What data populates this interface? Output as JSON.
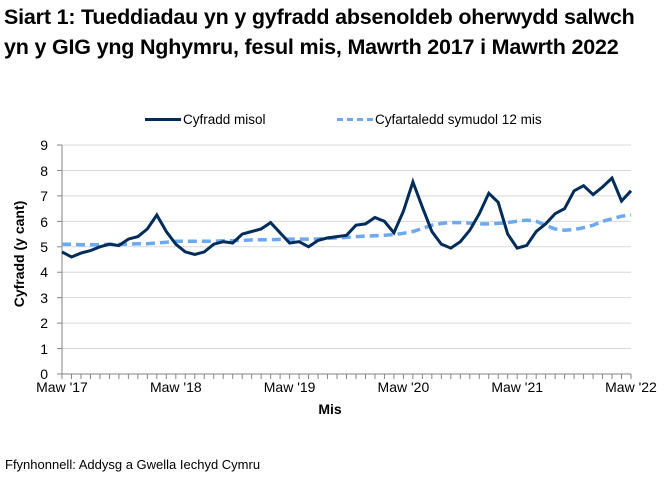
{
  "title": "Siart 1: Tueddiadau yn y gyfradd absenoldeb oherwydd salwch yn y GIG yng Nghymru, fesul mis, Mawrth 2017 i Mawrth 2022",
  "legend": {
    "series1": "Cyfradd misol",
    "series2": "Cyfartaledd symudol 12 mis"
  },
  "axes": {
    "ylabel": "Cyfradd (y cant)",
    "xlabel": "Mis",
    "yticks": [
      "0",
      "1",
      "2",
      "3",
      "4",
      "5",
      "6",
      "7",
      "8",
      "9"
    ],
    "xticks": [
      "Maw '17",
      "Maw '18",
      "Maw '19",
      "Maw '20",
      "Maw '21",
      "Maw '22"
    ]
  },
  "source": "Ffynhonnell: Addysg a Gwella Iechyd Cymru",
  "colors": {
    "monthly": "#002C5C",
    "rolling": "#6CA9F2",
    "grid": "#D9D9D9",
    "axis": "#868686"
  },
  "chart_data": {
    "type": "line",
    "title": "Siart 1: Tueddiadau yn y gyfradd absenoldeb oherwydd salwch yn y GIG yng Nghymru, fesul mis, Mawrth 2017 i Mawrth 2022",
    "xlabel": "Mis",
    "ylabel": "Cyfradd (y cant)",
    "ylim": [
      0,
      9
    ],
    "grid": true,
    "legend_position": "top",
    "x": [
      "Mar 2017",
      "Apr 2017",
      "May 2017",
      "Jun 2017",
      "Jul 2017",
      "Aug 2017",
      "Sep 2017",
      "Oct 2017",
      "Nov 2017",
      "Dec 2017",
      "Jan 2018",
      "Feb 2018",
      "Mar 2018",
      "Apr 2018",
      "May 2018",
      "Jun 2018",
      "Jul 2018",
      "Aug 2018",
      "Sep 2018",
      "Oct 2018",
      "Nov 2018",
      "Dec 2018",
      "Jan 2019",
      "Feb 2019",
      "Mar 2019",
      "Apr 2019",
      "May 2019",
      "Jun 2019",
      "Jul 2019",
      "Aug 2019",
      "Sep 2019",
      "Oct 2019",
      "Nov 2019",
      "Dec 2019",
      "Jan 2020",
      "Feb 2020",
      "Mar 2020",
      "Apr 2020",
      "May 2020",
      "Jun 2020",
      "Jul 2020",
      "Aug 2020",
      "Sep 2020",
      "Oct 2020",
      "Nov 2020",
      "Dec 2020",
      "Jan 2021",
      "Feb 2021",
      "Mar 2021",
      "Apr 2021",
      "May 2021",
      "Jun 2021",
      "Jul 2021",
      "Aug 2021",
      "Sep 2021",
      "Oct 2021",
      "Nov 2021",
      "Dec 2021",
      "Jan 2022",
      "Feb 2022",
      "Mar 2022"
    ],
    "tick_labels": [
      "Maw '17",
      "Maw '18",
      "Maw '19",
      "Maw '20",
      "Maw '21",
      "Maw '22"
    ],
    "series": [
      {
        "name": "Cyfradd misol",
        "style": "solid",
        "values": [
          4.8,
          4.6,
          4.75,
          4.85,
          5.0,
          5.1,
          5.05,
          5.3,
          5.4,
          5.7,
          6.25,
          5.6,
          5.1,
          4.8,
          4.7,
          4.8,
          5.1,
          5.2,
          5.15,
          5.5,
          5.6,
          5.7,
          5.95,
          5.55,
          5.15,
          5.2,
          5.0,
          5.25,
          5.35,
          5.4,
          5.45,
          5.85,
          5.9,
          6.15,
          6.0,
          5.55,
          6.4,
          7.55,
          6.55,
          5.6,
          5.1,
          4.95,
          5.2,
          5.65,
          6.3,
          7.1,
          6.75,
          5.5,
          4.95,
          5.05,
          5.6,
          5.9,
          6.3,
          6.5,
          7.2,
          7.4,
          7.05,
          7.35,
          7.7,
          6.8,
          7.2
        ]
      },
      {
        "name": "Cyfartaledd symudol 12 mis",
        "style": "dashed",
        "values": [
          5.1,
          5.1,
          5.08,
          5.08,
          5.08,
          5.1,
          5.1,
          5.1,
          5.12,
          5.12,
          5.15,
          5.18,
          5.22,
          5.22,
          5.22,
          5.22,
          5.22,
          5.24,
          5.24,
          5.25,
          5.27,
          5.28,
          5.28,
          5.29,
          5.3,
          5.3,
          5.3,
          5.31,
          5.33,
          5.35,
          5.37,
          5.4,
          5.42,
          5.43,
          5.45,
          5.48,
          5.53,
          5.6,
          5.72,
          5.85,
          5.92,
          5.95,
          5.95,
          5.93,
          5.9,
          5.9,
          5.92,
          5.95,
          6.0,
          6.05,
          6.0,
          5.85,
          5.7,
          5.65,
          5.68,
          5.75,
          5.85,
          6.0,
          6.1,
          6.2,
          6.25
        ]
      }
    ]
  }
}
